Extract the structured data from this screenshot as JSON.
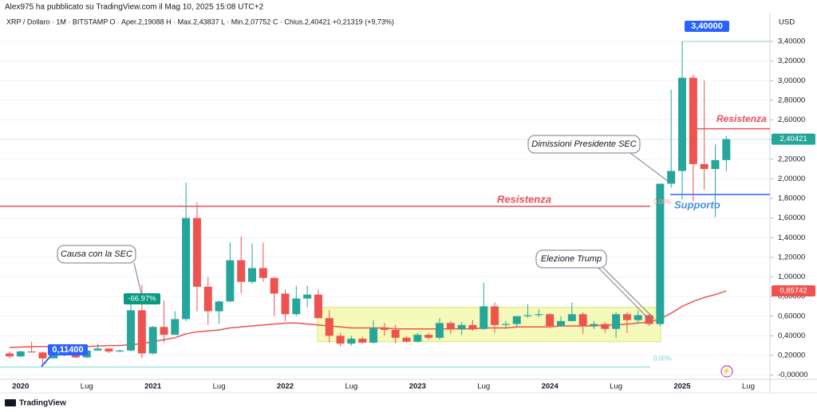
{
  "chart_data": {
    "type": "candlestick",
    "title": "Alex975 ha pubblicato su TradingView.com il Mag 10, 2025 15:08 UTC+2",
    "subtitle": "XRP / Dollaro · 1M · BITSTAMP  O · Aper.2,19088  H · Max.2,43837  L · Min.2,07752  C · Chius.2,40421  +0,21319 (+9,73%)",
    "y_axis_label": "USD",
    "footer": "TradingView",
    "categories": [
      null,
      "2020",
      null,
      null,
      null,
      null,
      null,
      "Lug",
      null,
      null,
      null,
      null,
      null,
      "2021",
      null,
      null,
      null,
      null,
      null,
      "Lug",
      null,
      null,
      null,
      null,
      null,
      "2022",
      null,
      null,
      null,
      null,
      null,
      "Lug",
      null,
      null,
      null,
      null,
      null,
      "2023",
      null,
      null,
      null,
      null,
      null,
      "Lug",
      null,
      null,
      null,
      null,
      null,
      "2024",
      null,
      null,
      null,
      null,
      null,
      "Lug",
      null,
      null,
      null,
      null,
      null,
      "2025",
      null,
      null,
      null,
      null,
      null,
      "Lug"
    ],
    "open": [
      0.22,
      0.19,
      0.24,
      0.23,
      0.17,
      0.21,
      0.2,
      0.18,
      0.25,
      0.27,
      0.24,
      0.25,
      0.66,
      0.22,
      0.49,
      0.41,
      0.57,
      1.6,
      0.9,
      0.65,
      0.75,
      1.17,
      0.95,
      1.09,
      0.99,
      0.83,
      0.62,
      0.78,
      0.82,
      0.58,
      0.4,
      0.32,
      0.37,
      0.33,
      0.48,
      0.46,
      0.38,
      0.34,
      0.41,
      0.38,
      0.53,
      0.47,
      0.51,
      0.47,
      0.7,
      0.51,
      0.52,
      0.6,
      0.61,
      0.62,
      0.5,
      0.55,
      0.62,
      0.5,
      0.52,
      0.47,
      0.62,
      0.56,
      0.61,
      0.52,
      1.95,
      2.08,
      3.03,
      2.15,
      2.1,
      2.19088,
      null,
      null
    ],
    "high": [
      0.24,
      0.25,
      0.34,
      0.24,
      0.23,
      0.22,
      0.21,
      0.26,
      0.32,
      0.27,
      0.26,
      0.78,
      0.92,
      0.5,
      0.76,
      0.65,
      1.96,
      1.76,
      1.0,
      0.76,
      1.35,
      1.41,
      1.34,
      1.35,
      1.0,
      0.87,
      0.91,
      0.91,
      0.87,
      0.66,
      0.43,
      0.4,
      0.39,
      0.56,
      0.53,
      0.51,
      0.4,
      0.43,
      0.43,
      0.58,
      0.55,
      0.54,
      0.56,
      0.94,
      0.74,
      0.55,
      0.6,
      0.72,
      0.67,
      0.63,
      0.6,
      0.74,
      0.64,
      0.55,
      0.54,
      0.64,
      0.64,
      0.66,
      0.62,
      1.95,
      2.91,
      3.4,
      3.06,
      3.0,
      2.35,
      2.43837,
      null,
      null
    ],
    "low": [
      0.17,
      0.18,
      0.23,
      0.114,
      0.17,
      0.19,
      0.17,
      0.17,
      0.25,
      0.22,
      0.23,
      0.24,
      0.17,
      0.21,
      0.33,
      0.41,
      0.55,
      0.65,
      0.51,
      0.52,
      0.74,
      0.83,
      0.93,
      0.95,
      0.6,
      0.55,
      0.6,
      0.69,
      0.58,
      0.33,
      0.29,
      0.3,
      0.32,
      0.32,
      0.4,
      0.32,
      0.33,
      0.33,
      0.36,
      0.36,
      0.42,
      0.41,
      0.45,
      0.46,
      0.43,
      0.47,
      0.49,
      0.58,
      0.59,
      0.49,
      0.49,
      0.55,
      0.42,
      0.47,
      0.43,
      0.38,
      0.43,
      0.53,
      0.5,
      0.5,
      1.91,
      1.79,
      1.77,
      1.89,
      1.61,
      2.07752,
      null,
      null
    ],
    "close": [
      0.19,
      0.24,
      0.23,
      0.17,
      0.21,
      0.2,
      0.18,
      0.25,
      0.27,
      0.24,
      0.25,
      0.66,
      0.22,
      0.49,
      0.41,
      0.57,
      1.6,
      0.9,
      0.65,
      0.75,
      1.17,
      0.95,
      1.09,
      0.99,
      0.83,
      0.62,
      0.78,
      0.82,
      0.58,
      0.4,
      0.32,
      0.37,
      0.33,
      0.48,
      0.46,
      0.38,
      0.34,
      0.41,
      0.38,
      0.53,
      0.47,
      0.51,
      0.47,
      0.7,
      0.51,
      0.52,
      0.6,
      0.61,
      0.62,
      0.5,
      0.55,
      0.62,
      0.5,
      0.52,
      0.47,
      0.62,
      0.56,
      0.61,
      0.52,
      1.95,
      2.08,
      3.03,
      2.15,
      2.1,
      2.19088,
      2.40421,
      null,
      null
    ],
    "ma_values": [
      0.28,
      0.285,
      0.29,
      0.29,
      0.29,
      0.29,
      0.29,
      0.29,
      0.295,
      0.3,
      0.3,
      0.31,
      0.32,
      0.34,
      0.36,
      0.38,
      0.42,
      0.44,
      0.45,
      0.46,
      0.48,
      0.49,
      0.5,
      0.51,
      0.52,
      0.53,
      0.53,
      0.52,
      0.51,
      0.5,
      0.49,
      0.48,
      0.48,
      0.48,
      0.48,
      0.47,
      0.47,
      0.47,
      0.47,
      0.47,
      0.47,
      0.47,
      0.47,
      0.48,
      0.48,
      0.48,
      0.49,
      0.49,
      0.49,
      0.49,
      0.5,
      0.5,
      0.5,
      0.5,
      0.51,
      0.51,
      0.52,
      0.53,
      0.54,
      0.57,
      0.63,
      0.7,
      0.75,
      0.79,
      0.82,
      0.85742,
      null,
      null
    ],
    "up_color": "#26a69a",
    "down_color": "#ef5350",
    "ma_color": "#ef5350",
    "ylim": [
      -0.06,
      3.66
    ],
    "yticks": [
      {
        "value": 0,
        "label": "-0,00000"
      },
      {
        "value": 0.2,
        "label": "0,20000"
      },
      {
        "value": 0.4,
        "label": "0,40000"
      },
      {
        "value": 0.6,
        "label": "0,60000"
      },
      {
        "value": 0.8,
        "label": "0,80000"
      },
      {
        "value": 1,
        "label": "1,00000"
      },
      {
        "value": 1.2,
        "label": "1,20000"
      },
      {
        "value": 1.4,
        "label": "1,40000"
      },
      {
        "value": 1.6,
        "label": "1,60000"
      },
      {
        "value": 1.8,
        "label": "1,80000"
      },
      {
        "value": 2,
        "label": "2,00000"
      },
      {
        "value": 2.2,
        "label": "2,20000"
      },
      {
        "value": 2.4,
        "label": "2,40000"
      },
      {
        "value": 2.6,
        "label": "2,60000"
      },
      {
        "value": 2.8,
        "label": "2,80000"
      },
      {
        "value": 3,
        "label": "3,00000"
      },
      {
        "value": 3.2,
        "label": "3,20000"
      },
      {
        "value": 3.4,
        "label": "3,40000"
      }
    ],
    "grid": true,
    "range_box": {
      "from": 0.34,
      "to": 0.69,
      "color": "#f2f7a8"
    },
    "levels": [
      {
        "label": "Resistenza",
        "value": 1.72,
        "color": "#e8505b"
      },
      {
        "label": "Resistenza",
        "value": 2.51,
        "color": "#e8505b"
      },
      {
        "label": "Supporto",
        "value": 1.84,
        "color": "#2962ff"
      }
    ],
    "price_tags": [
      {
        "value": 0.114,
        "label": "0,11400",
        "color": "#2962ff"
      },
      {
        "value": 3.4,
        "label": "3,40000",
        "color": "#2962ff"
      },
      {
        "value": -66.97,
        "label": "-66.97%",
        "color": "#089981"
      },
      {
        "value": 2.40421,
        "label": "2,40421",
        "color": "#26a69a"
      },
      {
        "value": 0.85742,
        "label": "0,85742",
        "color": "#ef5350"
      }
    ],
    "fib_labels": [
      {
        "value": 1.84,
        "label": "0.00%"
      },
      {
        "value": 0.114,
        "label": "0.00%"
      }
    ],
    "annotations": [
      {
        "text": "Causa con la SEC"
      },
      {
        "text": "Elezione Trump"
      },
      {
        "text": "Dimissioni Presidente SEC"
      }
    ]
  }
}
